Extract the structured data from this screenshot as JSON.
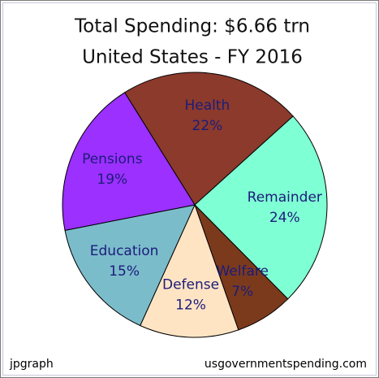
{
  "chart_data": {
    "type": "pie",
    "title": "Total Spending: $6.66 trn",
    "subtitle": "United States - FY 2016",
    "categories": [
      "Health",
      "Remainder",
      "Welfare",
      "Defense",
      "Education",
      "Pensions"
    ],
    "values": [
      22,
      24,
      7,
      12,
      15,
      19
    ],
    "value_labels": [
      "22%",
      "24%",
      "7%",
      "12%",
      "15%",
      "19%"
    ],
    "colors": [
      "#8b3a2c",
      "#7fffd4",
      "#7b3a1c",
      "#ffe4c4",
      "#7bbccb",
      "#9b30ff"
    ],
    "footer_left": "jpgraph",
    "footer_right": "usgovernmentspending.com"
  }
}
